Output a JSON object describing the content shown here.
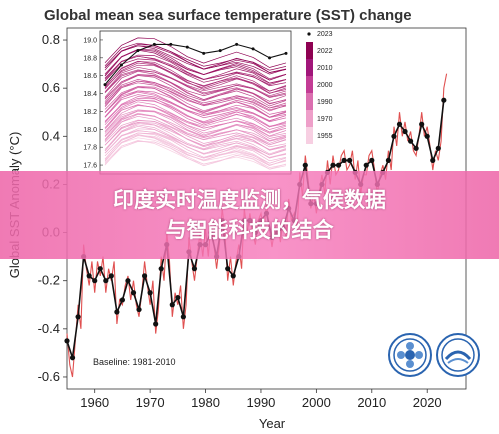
{
  "chart_data": {
    "type": "line",
    "title": "Global mean sea surface temperature (SST) change",
    "xlabel": "Year",
    "ylabel": "Global SST Anomaly (°C)",
    "xlim": [
      1955,
      2027
    ],
    "ylim": [
      -0.65,
      0.85
    ],
    "x_ticks": [
      1960,
      1970,
      1980,
      1990,
      2000,
      2010,
      2020
    ],
    "y_ticks": [
      -0.6,
      -0.4,
      -0.2,
      0.0,
      0.2,
      0.4,
      0.6,
      0.8
    ],
    "annotation": "Baseline: 1981-2010",
    "series": [
      {
        "type": "annual",
        "color": "#111111",
        "x": [
          1955,
          1956,
          1957,
          1958,
          1959,
          1960,
          1961,
          1962,
          1963,
          1964,
          1965,
          1966,
          1967,
          1968,
          1969,
          1970,
          1971,
          1972,
          1973,
          1974,
          1975,
          1976,
          1977,
          1978,
          1979,
          1980,
          1981,
          1982,
          1983,
          1984,
          1985,
          1986,
          1987,
          1988,
          1989,
          1990,
          1991,
          1992,
          1993,
          1994,
          1995,
          1996,
          1997,
          1998,
          1999,
          2000,
          2001,
          2002,
          2003,
          2004,
          2005,
          2006,
          2007,
          2008,
          2009,
          2010,
          2011,
          2012,
          2013,
          2014,
          2015,
          2016,
          2017,
          2018,
          2019,
          2020,
          2021,
          2022,
          2023
        ],
        "values": [
          -0.45,
          -0.52,
          -0.35,
          -0.1,
          -0.18,
          -0.2,
          -0.15,
          -0.2,
          -0.18,
          -0.33,
          -0.28,
          -0.2,
          -0.25,
          -0.32,
          -0.18,
          -0.25,
          -0.38,
          -0.15,
          -0.05,
          -0.3,
          -0.27,
          -0.35,
          -0.08,
          -0.15,
          -0.05,
          -0.05,
          0.0,
          -0.1,
          0.05,
          -0.15,
          -0.18,
          -0.1,
          0.05,
          0.05,
          0.0,
          0.05,
          0.08,
          -0.02,
          0.0,
          0.02,
          0.1,
          0.05,
          0.2,
          0.28,
          0.12,
          0.12,
          0.2,
          0.25,
          0.28,
          0.28,
          0.3,
          0.3,
          0.25,
          0.2,
          0.28,
          0.3,
          0.2,
          0.25,
          0.3,
          0.4,
          0.45,
          0.42,
          0.38,
          0.35,
          0.45,
          0.4,
          0.3,
          0.35,
          0.55
        ]
      },
      {
        "type": "monthly",
        "color": "#e05050",
        "x": [
          1955,
          1955.5,
          1956,
          1956.5,
          1957,
          1957.5,
          1958,
          1958.5,
          1959,
          1959.5,
          1960,
          1960.5,
          1961,
          1961.5,
          1962,
          1962.5,
          1963,
          1963.5,
          1964,
          1964.5,
          1965,
          1965.5,
          1966,
          1966.5,
          1967,
          1967.5,
          1968,
          1968.5,
          1969,
          1969.5,
          1970,
          1970.5,
          1971,
          1971.5,
          1972,
          1972.5,
          1973,
          1973.5,
          1974,
          1974.5,
          1975,
          1975.5,
          1976,
          1976.5,
          1977,
          1977.5,
          1978,
          1978.5,
          1979,
          1979.5,
          1980,
          1980.5,
          1981,
          1981.5,
          1982,
          1982.5,
          1983,
          1983.5,
          1984,
          1984.5,
          1985,
          1985.5,
          1986,
          1986.5,
          1987,
          1987.5,
          1988,
          1988.5,
          1989,
          1989.5,
          1990,
          1990.5,
          1991,
          1991.5,
          1992,
          1992.5,
          1993,
          1993.5,
          1994,
          1994.5,
          1995,
          1995.5,
          1996,
          1996.5,
          1997,
          1997.5,
          1998,
          1998.5,
          1999,
          1999.5,
          2000,
          2000.5,
          2001,
          2001.5,
          2002,
          2002.5,
          2003,
          2003.5,
          2004,
          2004.5,
          2005,
          2005.5,
          2006,
          2006.5,
          2007,
          2007.5,
          2008,
          2008.5,
          2009,
          2009.5,
          2010,
          2010.5,
          2011,
          2011.5,
          2012,
          2012.5,
          2013,
          2013.5,
          2014,
          2014.5,
          2015,
          2015.5,
          2016,
          2016.5,
          2017,
          2017.5,
          2018,
          2018.5,
          2019,
          2019.5,
          2020,
          2020.5,
          2021,
          2021.5,
          2022,
          2022.5,
          2023,
          2023.5
        ],
        "values": [
          -0.42,
          -0.55,
          -0.6,
          -0.45,
          -0.3,
          -0.4,
          -0.05,
          -0.15,
          -0.22,
          -0.12,
          -0.25,
          -0.12,
          -0.18,
          -0.1,
          -0.25,
          -0.15,
          -0.2,
          -0.12,
          -0.38,
          -0.28,
          -0.3,
          -0.22,
          -0.18,
          -0.28,
          -0.2,
          -0.3,
          -0.35,
          -0.25,
          -0.12,
          -0.22,
          -0.3,
          -0.2,
          -0.42,
          -0.32,
          -0.1,
          -0.2,
          0.0,
          -0.12,
          -0.35,
          -0.25,
          -0.3,
          -0.22,
          -0.4,
          -0.3,
          -0.02,
          -0.12,
          -0.2,
          -0.1,
          0.0,
          -0.1,
          0.02,
          -0.1,
          0.05,
          -0.05,
          -0.15,
          -0.05,
          0.1,
          0.0,
          -0.2,
          -0.1,
          -0.22,
          -0.12,
          -0.05,
          -0.15,
          0.1,
          0.0,
          0.08,
          0.0,
          -0.05,
          0.05,
          0.08,
          0.0,
          0.12,
          0.02,
          -0.06,
          0.02,
          0.04,
          -0.04,
          0.06,
          -0.02,
          0.14,
          0.05,
          0.08,
          0.0,
          0.25,
          0.15,
          0.32,
          0.22,
          0.1,
          0.16,
          0.08,
          0.16,
          0.24,
          0.16,
          0.3,
          0.2,
          0.32,
          0.24,
          0.26,
          0.32,
          0.34,
          0.26,
          0.28,
          0.34,
          0.22,
          0.3,
          0.16,
          0.24,
          0.24,
          0.32,
          0.34,
          0.26,
          0.16,
          0.24,
          0.28,
          0.22,
          0.34,
          0.26,
          0.44,
          0.36,
          0.5,
          0.4,
          0.46,
          0.38,
          0.42,
          0.34,
          0.32,
          0.4,
          0.5,
          0.4,
          0.44,
          0.36,
          0.26,
          0.34,
          0.3,
          0.38,
          0.6,
          0.66
        ]
      }
    ],
    "inset": {
      "type": "line",
      "x_ticks": [],
      "ylim": [
        17.5,
        19.1
      ],
      "y_ticks": [
        17.6,
        17.8,
        18.0,
        18.2,
        18.4,
        18.6,
        18.8,
        19.0
      ],
      "months": 12,
      "legend": {
        "entries": [
          "2023",
          "2022",
          "2010",
          "2000",
          "1990",
          "1970",
          "1955"
        ],
        "colors": [
          "#111111",
          "#8e0152",
          "#a1167a",
          "#c33c95",
          "#db6fb0",
          "#ee9fc9",
          "#f7cfe2"
        ],
        "position": "right"
      },
      "highlight_2023": [
        18.5,
        18.72,
        18.88,
        18.95,
        18.95,
        18.92,
        18.85,
        18.88,
        18.95,
        18.9,
        18.8,
        18.85
      ],
      "base_profile": [
        18.35,
        18.55,
        18.62,
        18.6,
        18.52,
        18.42,
        18.35,
        18.4,
        18.45,
        18.4,
        18.3,
        18.35
      ],
      "year_lines": 68,
      "spread": [
        -0.75,
        0.38
      ]
    }
  },
  "banner": {
    "line1": "印度实时温度监测，气候数据",
    "line2": "与智能科技的结合",
    "color": "#ee68aa"
  },
  "logos": [
    {
      "name": "china-meteorological-logo",
      "color": "#2a64b0"
    },
    {
      "name": "iap-logo",
      "color": "#2a64b0"
    }
  ]
}
